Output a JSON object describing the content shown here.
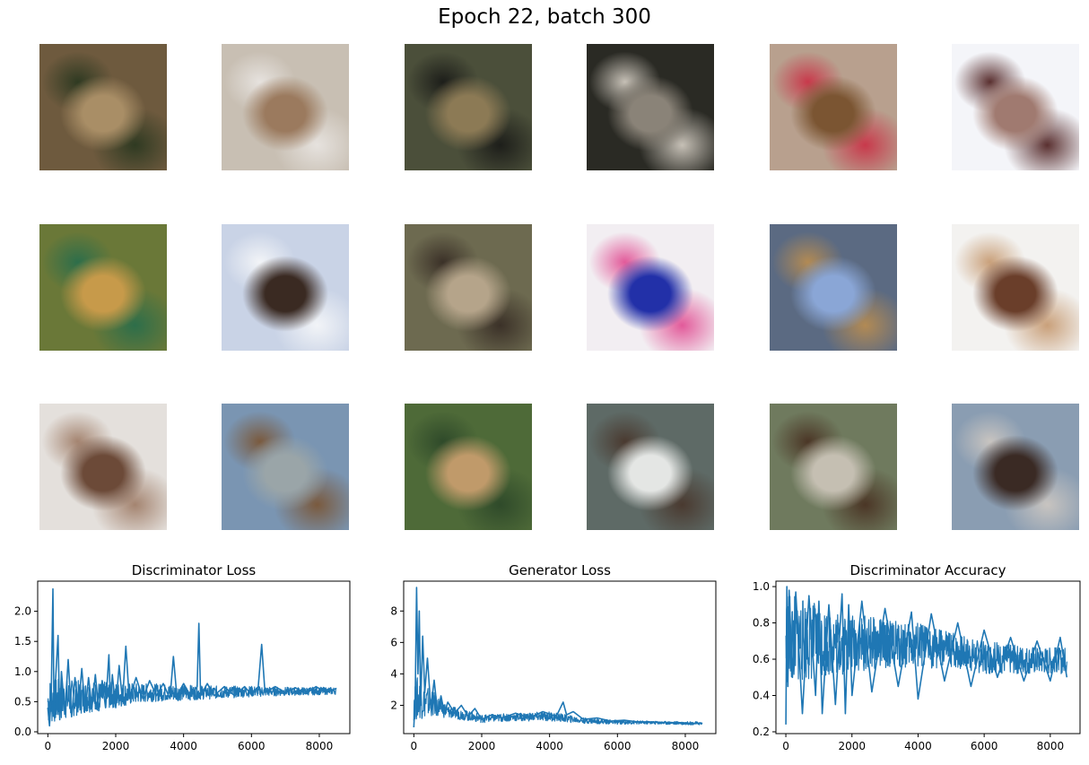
{
  "figure": {
    "title": "Epoch 22, batch 300"
  },
  "samples": [
    {
      "c1": "#6e5a3e",
      "c2": "#a98e66",
      "c3": "#2f3a22"
    },
    {
      "c1": "#c8bfb3",
      "c2": "#9b7a5e",
      "c3": "#e6e2de"
    },
    {
      "c1": "#4b4f3a",
      "c2": "#8c7a55",
      "c3": "#1d1e1a"
    },
    {
      "c1": "#2a2a24",
      "c2": "#8a8378",
      "c3": "#c6c0b6"
    },
    {
      "c1": "#b8a08e",
      "c2": "#7b5532",
      "c3": "#c8394b"
    },
    {
      "c1": "#f4f5f9",
      "c2": "#a07a70",
      "c3": "#5a3030"
    },
    {
      "c1": "#6a7838",
      "c2": "#c79a4a",
      "c3": "#2d6e4a"
    },
    {
      "c1": "#c9d3e6",
      "c2": "#3a2a22",
      "c3": "#f2f4f7"
    },
    {
      "c1": "#6d6a50",
      "c2": "#b5a48a",
      "c3": "#3b3128"
    },
    {
      "c1": "#f2eef2",
      "c2": "#2230a8",
      "c3": "#e25a9a"
    },
    {
      "c1": "#5b6a82",
      "c2": "#8aa6d6",
      "c3": "#b28a54"
    },
    {
      "c1": "#f3f2f0",
      "c2": "#6a3e2a",
      "c3": "#c9a07a"
    },
    {
      "c1": "#e4e0dc",
      "c2": "#6c4a38",
      "c3": "#a48470"
    },
    {
      "c1": "#7a95b2",
      "c2": "#9aa5a8",
      "c3": "#7a5a3e"
    },
    {
      "c1": "#4e6a38",
      "c2": "#c09a6a",
      "c3": "#2f4a2a"
    },
    {
      "c1": "#5e6a66",
      "c2": "#e4e6e4",
      "c3": "#4a3a30"
    },
    {
      "c1": "#6f7a5e",
      "c2": "#c5bfb2",
      "c3": "#4b3626"
    },
    {
      "c1": "#8a9db2",
      "c2": "#3a2a24",
      "c3": "#c8c4c0"
    }
  ],
  "chart_data": [
    {
      "type": "line",
      "title": "Discriminator Loss",
      "xlim": [
        -300,
        8900
      ],
      "ylim": [
        -0.03,
        2.5
      ],
      "xticks": [
        0,
        2000,
        4000,
        6000,
        8000
      ],
      "yticks": [
        0.0,
        0.5,
        1.0,
        1.5,
        2.0
      ],
      "ytick_labels": [
        "0.0",
        "0.5",
        "1.0",
        "1.5",
        "2.0"
      ],
      "color": "#1f77b4",
      "x": [
        0,
        50,
        100,
        150,
        180,
        220,
        300,
        350,
        400,
        500,
        600,
        700,
        800,
        900,
        1000,
        1100,
        1200,
        1300,
        1400,
        1500,
        1600,
        1700,
        1800,
        1850,
        1900,
        2000,
        2100,
        2200,
        2300,
        2400,
        2600,
        2800,
        3000,
        3200,
        3400,
        3600,
        3700,
        3800,
        4000,
        4200,
        4400,
        4450,
        4500,
        4700,
        4900,
        5200,
        5500,
        5800,
        6000,
        6200,
        6300,
        6400,
        6700,
        7000,
        7300,
        7600,
        7900,
        8200,
        8500
      ],
      "y": [
        0.4,
        0.1,
        0.6,
        2.37,
        0.3,
        0.8,
        1.6,
        0.2,
        1.0,
        0.3,
        1.2,
        0.25,
        0.9,
        0.4,
        1.05,
        0.35,
        0.9,
        0.4,
        0.95,
        0.35,
        0.85,
        0.4,
        1.28,
        0.45,
        0.95,
        0.4,
        1.1,
        0.5,
        1.42,
        0.55,
        0.9,
        0.55,
        0.85,
        0.6,
        0.8,
        0.55,
        1.25,
        0.6,
        0.8,
        0.6,
        0.75,
        1.8,
        0.6,
        0.8,
        0.6,
        0.75,
        0.6,
        0.75,
        0.62,
        0.75,
        1.45,
        0.65,
        0.75,
        0.65,
        0.73,
        0.63,
        0.75,
        0.65,
        0.72
      ],
      "noise_band": [
        [
          0,
          0.1,
          0.9
        ],
        [
          1000,
          0.3,
          0.85
        ],
        [
          2000,
          0.4,
          0.82
        ],
        [
          3000,
          0.5,
          0.8
        ],
        [
          4000,
          0.52,
          0.78
        ],
        [
          5000,
          0.55,
          0.76
        ],
        [
          6000,
          0.58,
          0.76
        ],
        [
          7000,
          0.6,
          0.74
        ],
        [
          8500,
          0.62,
          0.74
        ]
      ]
    },
    {
      "type": "line",
      "title": "Generator Loss",
      "xlim": [
        -300,
        8900
      ],
      "ylim": [
        0.2,
        9.9
      ],
      "xticks": [
        0,
        2000,
        4000,
        6000,
        8000
      ],
      "yticks": [
        2,
        4,
        6,
        8
      ],
      "ytick_labels": [
        "2",
        "4",
        "6",
        "8"
      ],
      "color": "#1f77b4",
      "x": [
        0,
        40,
        80,
        120,
        160,
        200,
        260,
        320,
        400,
        500,
        600,
        700,
        800,
        900,
        1000,
        1200,
        1400,
        1600,
        1800,
        2000,
        2300,
        2600,
        3000,
        3400,
        3800,
        4200,
        4400,
        4500,
        4700,
        5000,
        5400,
        5800,
        6200,
        6600,
        7000,
        7400,
        7800,
        8200,
        8500
      ],
      "y": [
        0.6,
        2.5,
        9.5,
        4.0,
        8.0,
        2.0,
        6.4,
        2.8,
        5.0,
        1.8,
        3.6,
        1.5,
        2.6,
        1.5,
        2.2,
        1.5,
        2.0,
        1.3,
        1.8,
        1.1,
        1.4,
        1.2,
        1.5,
        1.2,
        1.6,
        1.3,
        2.2,
        1.4,
        1.6,
        1.1,
        1.2,
        1.0,
        1.05,
        0.95,
        0.95,
        0.9,
        0.9,
        0.85,
        0.85
      ],
      "noise_band": [
        [
          0,
          1.0,
          4.0
        ],
        [
          500,
          1.3,
          3.0
        ],
        [
          1000,
          1.2,
          2.0
        ],
        [
          2000,
          0.9,
          1.4
        ],
        [
          3000,
          1.0,
          1.5
        ],
        [
          4000,
          1.0,
          1.6
        ],
        [
          5000,
          0.85,
          1.2
        ],
        [
          6000,
          0.8,
          1.05
        ],
        [
          7000,
          0.8,
          1.0
        ],
        [
          8500,
          0.75,
          0.95
        ]
      ]
    },
    {
      "type": "line",
      "title": "Discriminator Accuracy",
      "xlim": [
        -300,
        8900
      ],
      "ylim": [
        0.19,
        1.03
      ],
      "xticks": [
        0,
        2000,
        4000,
        6000,
        8000
      ],
      "yticks": [
        0.2,
        0.4,
        0.6,
        0.8,
        1.0
      ],
      "ytick_labels": [
        "0.2",
        "0.4",
        "0.6",
        "0.8",
        "1.0"
      ],
      "color": "#1f77b4",
      "x": [
        0,
        30,
        60,
        100,
        200,
        300,
        500,
        700,
        900,
        1000,
        1100,
        1300,
        1500,
        1700,
        1800,
        1900,
        2000,
        2300,
        2600,
        3000,
        3400,
        3800,
        4000,
        4400,
        4800,
        5200,
        5600,
        6000,
        6400,
        6800,
        7200,
        7600,
        8000,
        8300,
        8500
      ],
      "y": [
        0.24,
        1.0,
        0.45,
        0.98,
        0.5,
        0.97,
        0.3,
        0.95,
        0.4,
        0.92,
        0.3,
        0.9,
        0.35,
        0.96,
        0.3,
        0.9,
        0.4,
        0.92,
        0.42,
        0.88,
        0.45,
        0.86,
        0.38,
        0.85,
        0.48,
        0.8,
        0.45,
        0.76,
        0.5,
        0.72,
        0.48,
        0.7,
        0.48,
        0.72,
        0.5
      ],
      "noise_band": [
        [
          0,
          0.45,
          0.98
        ],
        [
          1000,
          0.5,
          0.9
        ],
        [
          2000,
          0.52,
          0.85
        ],
        [
          3000,
          0.55,
          0.82
        ],
        [
          4000,
          0.55,
          0.8
        ],
        [
          5000,
          0.55,
          0.75
        ],
        [
          6000,
          0.52,
          0.7
        ],
        [
          7000,
          0.52,
          0.68
        ],
        [
          8500,
          0.52,
          0.66
        ]
      ]
    }
  ]
}
